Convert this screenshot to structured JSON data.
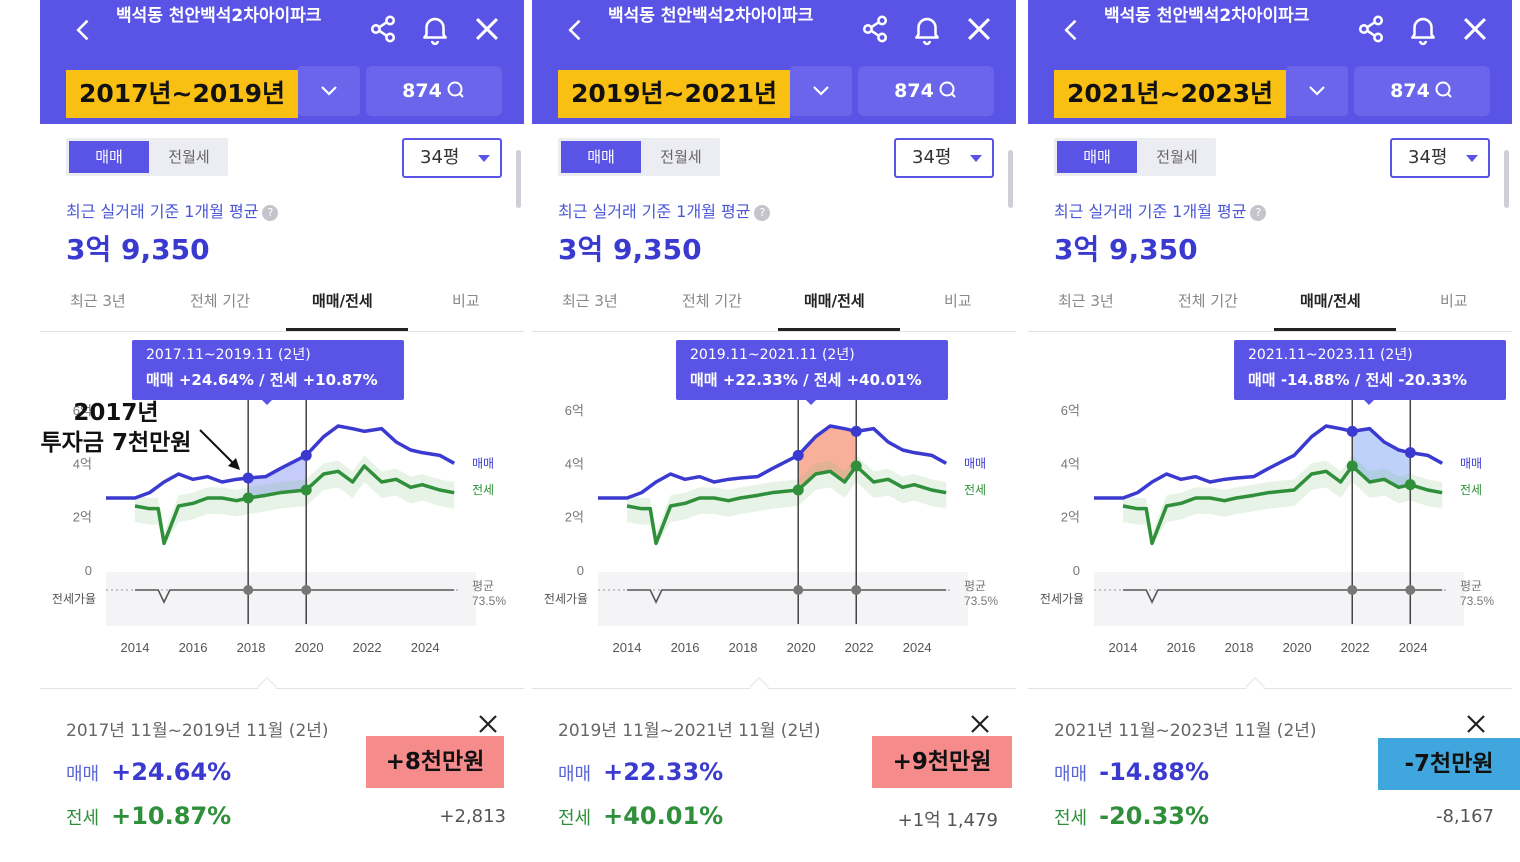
{
  "colors": {
    "header_bg": "#5a54e6",
    "period_badge": "#f9bf12",
    "sale_line": "#3b3ad0",
    "rent_line": "#2f8f3a",
    "callout_positive": "#f58b8b",
    "callout_negative": "#3fa7dd"
  },
  "icons": [
    "back-arrow-icon",
    "share-icon",
    "bell-icon",
    "close-icon",
    "chevron-down-icon",
    "search-icon",
    "help-icon"
  ],
  "annotation": {
    "line1": "2017년",
    "line2": "투자금 7천만원"
  },
  "panels": [
    {
      "header_title": "백석동 천안백석2차아이파크",
      "period": "2017년~2019년",
      "count": "874",
      "toggle_sale": "매매",
      "toggle_rent": "전월세",
      "size": "34평",
      "avg_label": "최근 실거래 기준 1개월 평균",
      "avg_price": "3억 9,350",
      "tabs": [
        "최근 3년",
        "전체 기간",
        "매매/전세",
        "비교"
      ],
      "tooltip_range": "2017.11~2019.11 (2년)",
      "tooltip_values": "매매 +24.64%  /  전세 +10.87%",
      "summary_range": "2017년 11월~2019년 11월 (2년)",
      "sale_label": "매매",
      "sale_value": "+24.64%",
      "rent_label": "전세",
      "rent_value": "+10.87%",
      "amount": "+2,813",
      "callout": "+8천만원"
    },
    {
      "header_title": "백석동 천안백석2차아이파크",
      "period": "2019년~2021년",
      "count": "874",
      "toggle_sale": "매매",
      "toggle_rent": "전월세",
      "size": "34평",
      "avg_label": "최근 실거래 기준 1개월 평균",
      "avg_price": "3억 9,350",
      "tabs": [
        "최근 3년",
        "전체 기간",
        "매매/전세",
        "비교"
      ],
      "tooltip_range": "2019.11~2021.11 (2년)",
      "tooltip_values": "매매 +22.33%  /  전세 +40.01%",
      "summary_range": "2019년 11월~2021년 11월 (2년)",
      "sale_label": "매매",
      "sale_value": "+22.33%",
      "rent_label": "전세",
      "rent_value": "+40.01%",
      "amount": "+1억 1,479",
      "callout": "+9천만원"
    },
    {
      "header_title": "백석동 천안백석2차아이파크",
      "period": "2021년~2023년",
      "count": "874",
      "toggle_sale": "매매",
      "toggle_rent": "전월세",
      "size": "34평",
      "avg_label": "최근 실거래 기준 1개월 평균",
      "avg_price": "3억 9,350",
      "tabs": [
        "최근 3년",
        "전체 기간",
        "매매/전세",
        "비교"
      ],
      "tooltip_range": "2021.11~2023.11 (2년)",
      "tooltip_values": "매매 -14.88%  /  전세 -20.33%",
      "summary_range": "2021년 11월~2023년 11월 (2년)",
      "sale_label": "매매",
      "sale_value": "-14.88%",
      "rent_label": "전세",
      "rent_value": "-20.33%",
      "amount": "-8,167",
      "callout": "-7천만원"
    }
  ],
  "chart_data": [
    {
      "type": "line",
      "x_ticks": [
        "2014",
        "2016",
        "2018",
        "2020",
        "2022",
        "2024"
      ],
      "y_ticks": [
        "0",
        "2억",
        "4억",
        "6억"
      ],
      "ylim": [
        0,
        6
      ],
      "ratio_label": "전세가율",
      "avg_label": "평균",
      "avg_value": "73.5%",
      "series": [
        {
          "name": "매매",
          "x": [
            2013.0,
            2014.0,
            2014.5,
            2015.0,
            2015.5,
            2016.0,
            2016.5,
            2017.0,
            2017.5,
            2017.9,
            2018.5,
            2019.0,
            2019.9,
            2020.5,
            2021.0,
            2021.5,
            2021.9,
            2022.5,
            2023.0,
            2023.5,
            2023.9,
            2024.5,
            2025.0
          ],
          "values": [
            2.7,
            2.7,
            2.9,
            3.3,
            3.6,
            3.4,
            3.5,
            3.3,
            3.4,
            3.45,
            3.5,
            3.8,
            4.3,
            5.0,
            5.4,
            5.3,
            5.2,
            5.3,
            4.8,
            4.5,
            4.4,
            4.3,
            4.0
          ]
        },
        {
          "name": "전세",
          "x": [
            2014.0,
            2014.5,
            2014.8,
            2015.0,
            2015.5,
            2016.0,
            2016.5,
            2017.0,
            2017.5,
            2017.9,
            2018.5,
            2019.0,
            2019.9,
            2020.5,
            2021.0,
            2021.5,
            2021.9,
            2022.5,
            2023.0,
            2023.5,
            2023.9,
            2024.5,
            2025.0
          ],
          "values": [
            2.4,
            2.3,
            2.3,
            1.0,
            2.4,
            2.5,
            2.7,
            2.7,
            2.6,
            2.7,
            2.8,
            2.9,
            3.0,
            3.6,
            3.7,
            3.3,
            3.9,
            3.3,
            3.4,
            3.1,
            3.2,
            3.0,
            2.9
          ]
        },
        {
          "name": "전세가율",
          "x": [
            2014.0,
            2014.8,
            2015.0,
            2015.2,
            2016.0,
            2017.0,
            2017.9,
            2019.0,
            2019.9,
            2021.0,
            2021.9,
            2023.0,
            2023.9,
            2025.0
          ],
          "values": [
            73.5,
            73.5,
            60,
            73.5,
            73.5,
            73.5,
            73.5,
            73.5,
            73.5,
            73.5,
            73.5,
            73.5,
            73.5,
            73.5
          ]
        }
      ]
    }
  ]
}
